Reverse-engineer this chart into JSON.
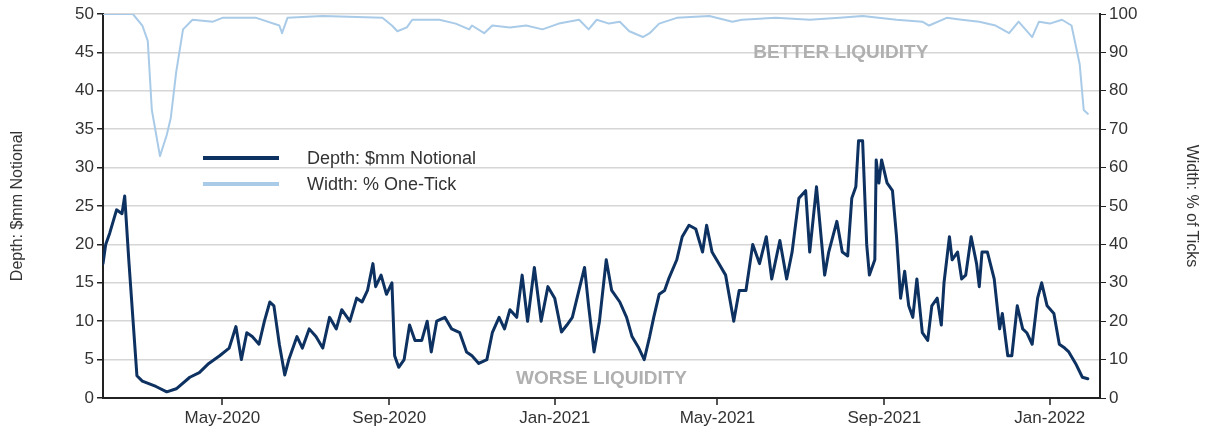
{
  "chart_data": {
    "type": "line",
    "ylabel": "Depth: $mm Notional",
    "y2label": "Width: % of Ticks",
    "xlim": [
      "2020-02-03",
      "2022-02-07"
    ],
    "xticks": [
      {
        "value": "2020-05-01",
        "label": "May-2020"
      },
      {
        "value": "2020-09-01",
        "label": "Sep-2020"
      },
      {
        "value": "2021-01-01",
        "label": "Jan-2021"
      },
      {
        "value": "2021-05-01",
        "label": "May-2021"
      },
      {
        "value": "2021-09-01",
        "label": "Sep-2021"
      },
      {
        "value": "2022-01-01",
        "label": "Jan-2022"
      }
    ],
    "ylim": [
      0,
      50
    ],
    "yticks": [
      0,
      5,
      10,
      15,
      20,
      25,
      30,
      35,
      40,
      45,
      50
    ],
    "y2lim": [
      0,
      100
    ],
    "y2ticks": [
      0,
      10,
      20,
      30,
      40,
      50,
      60,
      70,
      80,
      90,
      100
    ],
    "grid": "y",
    "legend": "left",
    "marker": "none",
    "annotations": [
      "BETTER LIQUIDITY",
      "WORSE LIQUIDITY"
    ],
    "series": [
      {
        "name": "Depth: $mm Notional",
        "color": "#0d3160",
        "axis": "y",
        "x": [
          "2020-02-03",
          "2020-02-05",
          "2020-02-08",
          "2020-02-13",
          "2020-02-17",
          "2020-02-19",
          "2020-02-22",
          "2020-02-28",
          "2020-03-03",
          "2020-03-13",
          "2020-03-21",
          "2020-03-28",
          "2020-04-07",
          "2020-04-14",
          "2020-04-21",
          "2020-04-29",
          "2020-05-06",
          "2020-05-11",
          "2020-05-15",
          "2020-05-19",
          "2020-05-23",
          "2020-05-28",
          "2020-06-01",
          "2020-06-05",
          "2020-06-08",
          "2020-06-12",
          "2020-06-16",
          "2020-06-19",
          "2020-06-25",
          "2020-06-29",
          "2020-07-04",
          "2020-07-09",
          "2020-07-14",
          "2020-07-19",
          "2020-07-24",
          "2020-07-28",
          "2020-08-03",
          "2020-08-08",
          "2020-08-12",
          "2020-08-16",
          "2020-08-20",
          "2020-08-22",
          "2020-08-26",
          "2020-08-30",
          "2020-09-03",
          "2020-09-05",
          "2020-09-08",
          "2020-09-12",
          "2020-09-16",
          "2020-09-20",
          "2020-09-25",
          "2020-09-29",
          "2020-10-02",
          "2020-10-06",
          "2020-10-12",
          "2020-10-17",
          "2020-10-23",
          "2020-10-28",
          "2020-11-01",
          "2020-11-06",
          "2020-11-12",
          "2020-11-16",
          "2020-11-21",
          "2020-11-25",
          "2020-11-29",
          "2020-12-04",
          "2020-12-08",
          "2020-12-12",
          "2020-12-17",
          "2020-12-22",
          "2020-12-27",
          "2021-01-01",
          "2021-01-06",
          "2021-01-10",
          "2021-01-14",
          "2021-01-23",
          "2021-01-26",
          "2021-01-30",
          "2021-02-03",
          "2021-02-08",
          "2021-02-12",
          "2021-02-18",
          "2021-02-23",
          "2021-02-27",
          "2021-03-04",
          "2021-03-08",
          "2021-03-12",
          "2021-03-15",
          "2021-03-19",
          "2021-03-23",
          "2021-03-26",
          "2021-04-01",
          "2021-04-05",
          "2021-04-10",
          "2021-04-15",
          "2021-04-20",
          "2021-04-23",
          "2021-04-27",
          "2021-05-02",
          "2021-05-07",
          "2021-05-10",
          "2021-05-13",
          "2021-05-17",
          "2021-05-22",
          "2021-05-27",
          "2021-06-01",
          "2021-06-06",
          "2021-06-10",
          "2021-06-16",
          "2021-06-21",
          "2021-06-25",
          "2021-06-30",
          "2021-07-05",
          "2021-07-08",
          "2021-07-13",
          "2021-07-19",
          "2021-07-22",
          "2021-07-28",
          "2021-08-01",
          "2021-08-05",
          "2021-08-08",
          "2021-08-11",
          "2021-08-13",
          "2021-08-16",
          "2021-08-19",
          "2021-08-21",
          "2021-08-25",
          "2021-08-26",
          "2021-08-28",
          "2021-08-30",
          "2021-09-03",
          "2021-09-07",
          "2021-09-10",
          "2021-09-13",
          "2021-09-16",
          "2021-09-19",
          "2021-09-22",
          "2021-09-25",
          "2021-09-29",
          "2021-10-03",
          "2021-10-06",
          "2021-10-10",
          "2021-10-13",
          "2021-10-15",
          "2021-10-19",
          "2021-10-21",
          "2021-10-25",
          "2021-10-28",
          "2021-10-31",
          "2021-11-04",
          "2021-11-08",
          "2021-11-10",
          "2021-11-12",
          "2021-11-16",
          "2021-11-21",
          "2021-11-25",
          "2021-11-27",
          "2021-12-01",
          "2021-12-04",
          "2021-12-08",
          "2021-12-12",
          "2021-12-15",
          "2021-12-19",
          "2021-12-23",
          "2021-12-26",
          "2021-12-30",
          "2022-01-04",
          "2022-01-08",
          "2022-01-12",
          "2022-01-15",
          "2022-01-20",
          "2022-01-25",
          "2022-01-29"
        ],
        "values": [
          17.5,
          20,
          21.5,
          24.5,
          24,
          26.3,
          18,
          2.9,
          2.2,
          1.5,
          0.8,
          1.2,
          2.7,
          3.3,
          4.5,
          5.5,
          6.5,
          9.3,
          5,
          8.5,
          8,
          7,
          10,
          12.5,
          12,
          7,
          3,
          5,
          8,
          6.5,
          9,
          8,
          6.5,
          10.5,
          9,
          11.5,
          10,
          13,
          12.5,
          14,
          17.5,
          14.5,
          16,
          13.5,
          15,
          5.5,
          4,
          5,
          9.5,
          7.5,
          7.5,
          10,
          6,
          10,
          10.5,
          9,
          8.5,
          6,
          5.5,
          4.5,
          5,
          8.5,
          10.5,
          9,
          11.5,
          10.5,
          16,
          10,
          17,
          10,
          14.5,
          13,
          8.6,
          9.5,
          10.5,
          17,
          12,
          6,
          10,
          18,
          14,
          12.5,
          10.5,
          8,
          6.5,
          5,
          8,
          10.5,
          13.5,
          14,
          15.5,
          18,
          21,
          22.5,
          22,
          19,
          22.5,
          19,
          17.5,
          16,
          13,
          10,
          14,
          14,
          20,
          17.5,
          21,
          15.5,
          20.5,
          15.5,
          19,
          26,
          27,
          19,
          27.5,
          16,
          19,
          23,
          19,
          18.5,
          26,
          27.5,
          33.5,
          33.5,
          20,
          16,
          18,
          31,
          28,
          31,
          28,
          27,
          21,
          13,
          16.5,
          12,
          10.5,
          15.5,
          8.5,
          7.5,
          12,
          13,
          9.5,
          15,
          21,
          18,
          19,
          15.5,
          16,
          21,
          17.5,
          14.5,
          19,
          19,
          15.5,
          9,
          11,
          5.5,
          5.5,
          12,
          9,
          8.5,
          7,
          13,
          15,
          12,
          11,
          7,
          6.5,
          6,
          4.5,
          2.7,
          2.5
        ]
      },
      {
        "name": "Width: % One-Tick",
        "color": "#a9cbe8",
        "axis": "y2",
        "x": [
          "2020-02-03",
          "2020-02-25",
          "2020-03-03",
          "2020-03-07",
          "2020-03-10",
          "2020-03-16",
          "2020-03-21",
          "2020-03-24",
          "2020-03-28",
          "2020-04-02",
          "2020-04-09",
          "2020-04-24",
          "2020-05-01",
          "2020-05-26",
          "2020-06-12",
          "2020-06-14",
          "2020-06-18",
          "2020-07-14",
          "2020-08-27",
          "2020-09-03",
          "2020-09-07",
          "2020-09-14",
          "2020-09-18",
          "2020-10-08",
          "2020-10-20",
          "2020-10-30",
          "2020-11-01",
          "2020-11-10",
          "2020-11-16",
          "2020-11-29",
          "2020-12-11",
          "2020-12-23",
          "2021-01-04",
          "2021-01-19",
          "2021-01-26",
          "2021-02-01",
          "2021-02-10",
          "2021-02-18",
          "2021-02-25",
          "2021-03-07",
          "2021-03-12",
          "2021-03-19",
          "2021-04-01",
          "2021-04-25",
          "2021-05-12",
          "2021-05-19",
          "2021-06-13",
          "2021-07-08",
          "2021-07-30",
          "2021-08-16",
          "2021-09-10",
          "2021-09-29",
          "2021-10-04",
          "2021-10-17",
          "2021-10-28",
          "2021-11-10",
          "2021-11-22",
          "2021-12-02",
          "2021-12-09",
          "2021-12-19",
          "2021-12-24",
          "2022-01-01",
          "2022-01-10",
          "2022-01-17",
          "2022-01-23",
          "2022-01-26",
          "2022-01-29"
        ],
        "values": [
          100,
          100,
          97,
          93,
          75,
          63,
          68.5,
          73,
          85,
          96,
          98.5,
          98,
          99,
          99,
          97,
          95,
          99,
          99.5,
          99,
          97,
          95.5,
          96.5,
          98.5,
          98.5,
          97.5,
          96,
          97,
          95,
          97,
          96.5,
          97,
          96,
          97.5,
          98.5,
          96,
          98.5,
          97.5,
          98,
          95.5,
          94,
          95,
          97.5,
          99,
          99.5,
          98,
          98.5,
          99,
          98.5,
          99,
          99.5,
          98.5,
          98,
          97,
          99,
          98.5,
          98,
          97,
          95,
          98,
          94,
          98,
          97.5,
          98.5,
          97,
          87,
          75,
          74
        ]
      }
    ]
  }
}
